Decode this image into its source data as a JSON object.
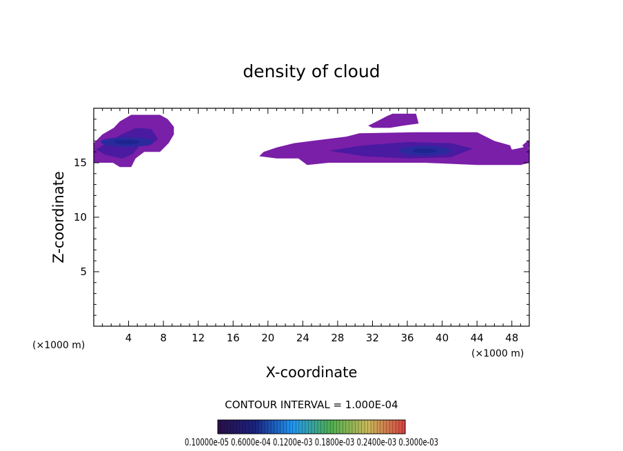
{
  "chart_data": {
    "type": "contour",
    "title": "density of cloud",
    "xlabel": "X-coordinate",
    "ylabel": "Z-coordinate",
    "x_unit": "(×1000 m)",
    "xlim": [
      0,
      50
    ],
    "ylim": [
      0,
      20
    ],
    "x_ticks": [
      4,
      8,
      12,
      16,
      20,
      24,
      28,
      32,
      36,
      40,
      44,
      48
    ],
    "y_ticks": [
      5,
      10,
      15
    ],
    "contour_interval_text": "CONTOUR INTERVAL = 1.000E-04",
    "colorbar_label": "0.10000e-05 0.6000e-04 0.1200e-03 0.1800e-03 0.2400e-03 0.3000e-03",
    "colorbar_colors": [
      "#2a0f4a",
      "#1a237e",
      "#2196f3",
      "#4caf50",
      "#c9b85a",
      "#d84040"
    ],
    "cloud_regions": [
      {
        "name": "left-cloud",
        "outline": [
          [
            0,
            15.0
          ],
          [
            0,
            16.8
          ],
          [
            1.0,
            17.6
          ],
          [
            2.3,
            18.2
          ],
          [
            3.0,
            18.8
          ],
          [
            4.3,
            19.4
          ],
          [
            7.6,
            19.4
          ],
          [
            8.5,
            19.0
          ],
          [
            9.2,
            18.3
          ],
          [
            9.2,
            17.6
          ],
          [
            8.6,
            16.8
          ],
          [
            7.6,
            16.0
          ],
          [
            5.8,
            16.0
          ],
          [
            4.8,
            15.4
          ],
          [
            4.3,
            14.6
          ],
          [
            3.0,
            14.6
          ],
          [
            2.2,
            15.0
          ]
        ],
        "core": [
          [
            0.3,
            16.2
          ],
          [
            1.6,
            16.9
          ],
          [
            3.2,
            17.6
          ],
          [
            4.9,
            18.2
          ],
          [
            6.6,
            18.1
          ],
          [
            7.4,
            17.2
          ],
          [
            6.5,
            16.6
          ],
          [
            5.2,
            16.5
          ],
          [
            4.5,
            15.8
          ],
          [
            3.3,
            15.4
          ],
          [
            1.4,
            15.7
          ]
        ],
        "peak": [
          3.8,
          16.9
        ]
      },
      {
        "name": "right-cloud",
        "outline": [
          [
            19.0,
            15.6
          ],
          [
            19.5,
            16.0
          ],
          [
            21.0,
            16.4
          ],
          [
            23.0,
            16.8
          ],
          [
            25.0,
            17.0
          ],
          [
            27.0,
            17.2
          ],
          [
            29.0,
            17.4
          ],
          [
            30.5,
            17.7
          ],
          [
            37.0,
            17.8
          ],
          [
            44.0,
            17.8
          ],
          [
            46.0,
            17.0
          ],
          [
            47.8,
            16.6
          ],
          [
            48.0,
            16.2
          ],
          [
            49.8,
            16.5
          ],
          [
            50.0,
            16.2
          ],
          [
            50.0,
            15.0
          ],
          [
            49.0,
            14.8
          ],
          [
            44.0,
            14.8
          ],
          [
            38.0,
            15.0
          ],
          [
            32.0,
            15.0
          ],
          [
            27.0,
            15.0
          ],
          [
            24.5,
            14.8
          ],
          [
            23.5,
            15.4
          ],
          [
            21.0,
            15.4
          ]
        ],
        "core": [
          [
            27.0,
            16.1
          ],
          [
            31.0,
            16.6
          ],
          [
            36.0,
            16.9
          ],
          [
            41.0,
            16.8
          ],
          [
            43.5,
            16.3
          ],
          [
            41.0,
            15.5
          ],
          [
            36.0,
            15.4
          ],
          [
            31.0,
            15.6
          ]
        ],
        "peak": [
          38.0,
          16.1
        ]
      },
      {
        "name": "upper-patch",
        "outline": [
          [
            31.5,
            18.4
          ],
          [
            32.5,
            18.8
          ],
          [
            33.7,
            19.3
          ],
          [
            34.3,
            19.5
          ],
          [
            37.0,
            19.5
          ],
          [
            37.3,
            18.6
          ],
          [
            35.5,
            18.4
          ],
          [
            34.0,
            18.2
          ],
          [
            32.0,
            18.2
          ]
        ]
      },
      {
        "name": "edge-patch",
        "outline": [
          [
            49.2,
            16.6
          ],
          [
            49.8,
            17.0
          ],
          [
            50.0,
            17.0
          ],
          [
            50.0,
            16.4
          ],
          [
            49.5,
            16.3
          ]
        ]
      }
    ]
  }
}
